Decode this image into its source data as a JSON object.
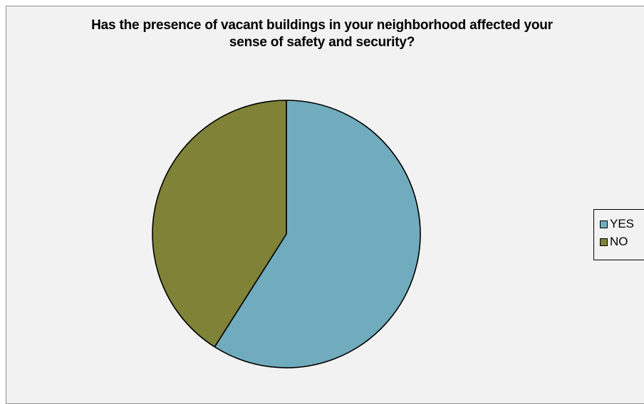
{
  "chart_data": {
    "type": "pie",
    "title_lines": [
      "Has the presence of vacant buildings in your neighborhood affected your",
      "sense of safety and security?"
    ],
    "categories": [
      "YES",
      "NO"
    ],
    "values": [
      59,
      41
    ],
    "colors": [
      "#70acbd",
      "#7f8237"
    ],
    "start_angle_deg": 0,
    "direction": "clockwise",
    "legend_position": "right"
  }
}
